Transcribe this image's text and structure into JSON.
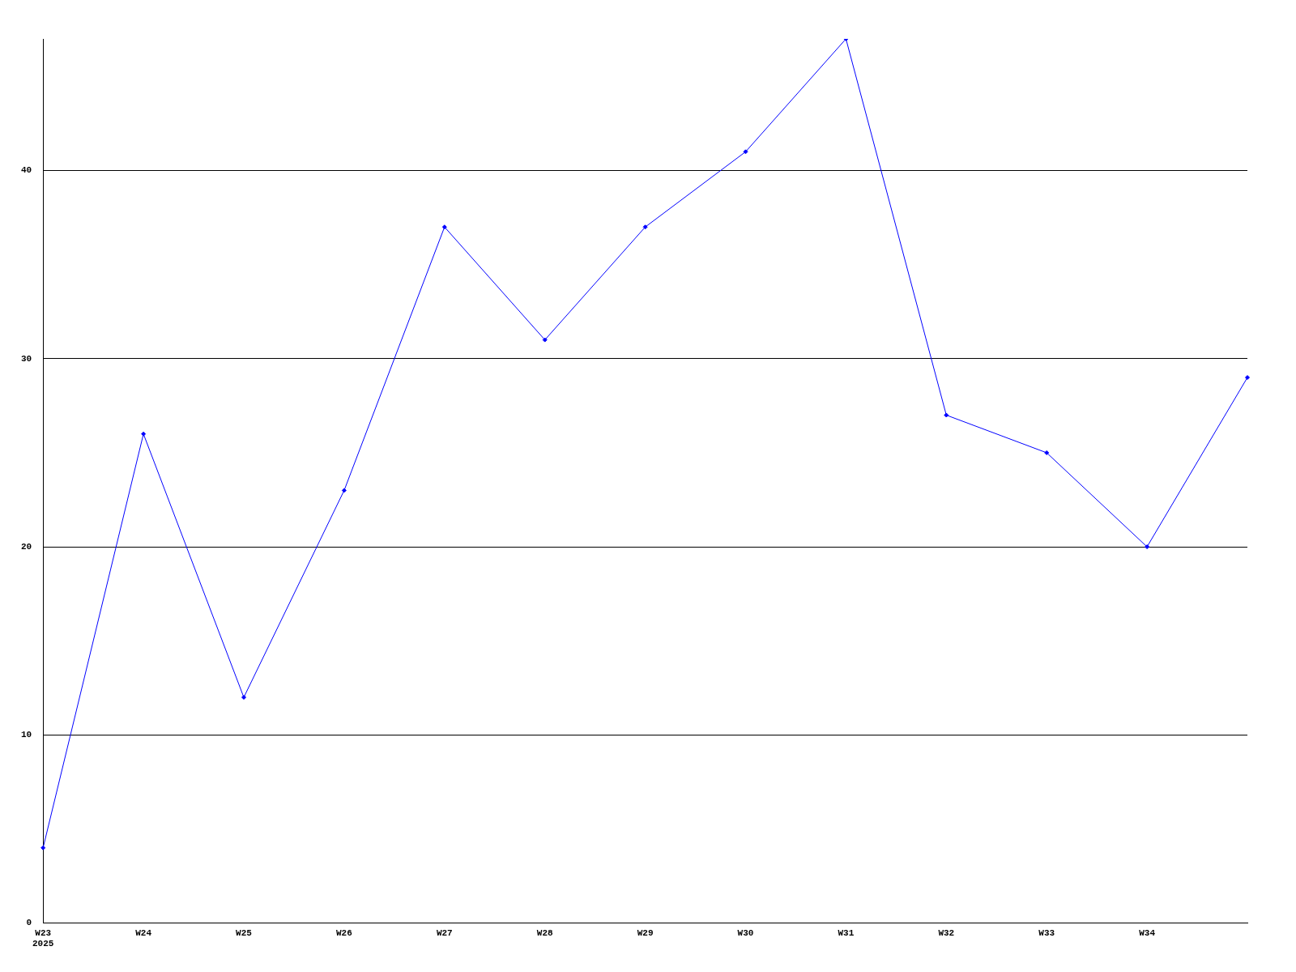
{
  "chart_data": {
    "type": "line",
    "categories": [
      "W23\n2025",
      "W24",
      "W25",
      "W26",
      "W27",
      "W28",
      "W29",
      "W30",
      "W31",
      "W32",
      "W33",
      "W34",
      null
    ],
    "series": [
      {
        "color": "#0000ff",
        "values": [
          4,
          26,
          12,
          23,
          37,
          31,
          37,
          41,
          47,
          27,
          25,
          20,
          29
        ]
      }
    ],
    "ylim": [
      0,
      47
    ],
    "yticks": [
      0,
      10,
      20,
      30,
      40
    ],
    "grid": "y",
    "marker": "diamond",
    "line_style": "solid",
    "legend": false
  }
}
